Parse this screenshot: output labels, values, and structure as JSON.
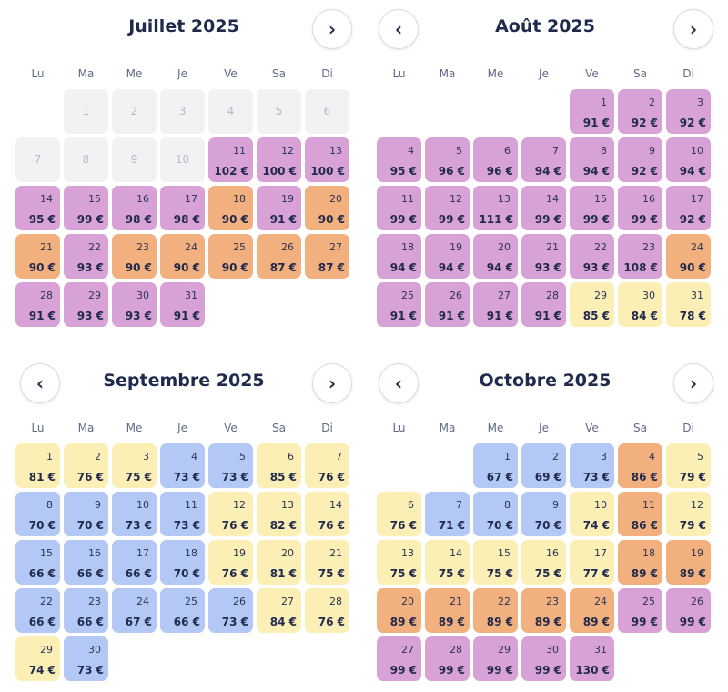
{
  "weekdays": [
    "Lu",
    "Ma",
    "Me",
    "Je",
    "Ve",
    "Sa",
    "Di"
  ],
  "nav": {
    "prev_glyph": "‹",
    "next_glyph": "›"
  },
  "colors": {
    "purple": "#d8a2d6",
    "orange": "#f3b07f",
    "yellow": "#fbefb6",
    "blue": "#b3c8f4",
    "gray": "#f1f2f4"
  },
  "months": [
    {
      "title": "Juillet 2025",
      "prev": false,
      "next": true,
      "offset": 1,
      "days": [
        {
          "d": "1",
          "p": "",
          "c": "gray"
        },
        {
          "d": "2",
          "p": "",
          "c": "gray"
        },
        {
          "d": "3",
          "p": "",
          "c": "gray"
        },
        {
          "d": "4",
          "p": "",
          "c": "gray"
        },
        {
          "d": "5",
          "p": "",
          "c": "gray"
        },
        {
          "d": "6",
          "p": "",
          "c": "gray"
        },
        {
          "d": "7",
          "p": "",
          "c": "gray"
        },
        {
          "d": "8",
          "p": "",
          "c": "gray"
        },
        {
          "d": "9",
          "p": "",
          "c": "gray"
        },
        {
          "d": "10",
          "p": "",
          "c": "gray"
        },
        {
          "d": "11",
          "p": "102 €",
          "c": "purple"
        },
        {
          "d": "12",
          "p": "100 €",
          "c": "purple"
        },
        {
          "d": "13",
          "p": "100 €",
          "c": "purple"
        },
        {
          "d": "14",
          "p": "95 €",
          "c": "purple"
        },
        {
          "d": "15",
          "p": "99 €",
          "c": "purple"
        },
        {
          "d": "16",
          "p": "98 €",
          "c": "purple"
        },
        {
          "d": "17",
          "p": "98 €",
          "c": "purple"
        },
        {
          "d": "18",
          "p": "90 €",
          "c": "orange"
        },
        {
          "d": "19",
          "p": "91 €",
          "c": "purple"
        },
        {
          "d": "20",
          "p": "90 €",
          "c": "orange"
        },
        {
          "d": "21",
          "p": "90 €",
          "c": "orange"
        },
        {
          "d": "22",
          "p": "93 €",
          "c": "purple"
        },
        {
          "d": "23",
          "p": "90 €",
          "c": "orange"
        },
        {
          "d": "24",
          "p": "90 €",
          "c": "orange"
        },
        {
          "d": "25",
          "p": "90 €",
          "c": "orange"
        },
        {
          "d": "26",
          "p": "87 €",
          "c": "orange"
        },
        {
          "d": "27",
          "p": "87 €",
          "c": "orange"
        },
        {
          "d": "28",
          "p": "91 €",
          "c": "purple"
        },
        {
          "d": "29",
          "p": "93 €",
          "c": "purple"
        },
        {
          "d": "30",
          "p": "93 €",
          "c": "purple"
        },
        {
          "d": "31",
          "p": "91 €",
          "c": "purple"
        }
      ]
    },
    {
      "title": "Août 2025",
      "prev": true,
      "next": true,
      "offset": 4,
      "days": [
        {
          "d": "1",
          "p": "91 €",
          "c": "purple"
        },
        {
          "d": "2",
          "p": "92 €",
          "c": "purple"
        },
        {
          "d": "3",
          "p": "92 €",
          "c": "purple"
        },
        {
          "d": "4",
          "p": "95 €",
          "c": "purple"
        },
        {
          "d": "5",
          "p": "96 €",
          "c": "purple"
        },
        {
          "d": "6",
          "p": "96 €",
          "c": "purple"
        },
        {
          "d": "7",
          "p": "94 €",
          "c": "purple"
        },
        {
          "d": "8",
          "p": "94 €",
          "c": "purple"
        },
        {
          "d": "9",
          "p": "92 €",
          "c": "purple"
        },
        {
          "d": "10",
          "p": "94 €",
          "c": "purple"
        },
        {
          "d": "11",
          "p": "99 €",
          "c": "purple"
        },
        {
          "d": "12",
          "p": "99 €",
          "c": "purple"
        },
        {
          "d": "13",
          "p": "111 €",
          "c": "purple"
        },
        {
          "d": "14",
          "p": "99 €",
          "c": "purple"
        },
        {
          "d": "15",
          "p": "99 €",
          "c": "purple"
        },
        {
          "d": "16",
          "p": "99 €",
          "c": "purple"
        },
        {
          "d": "17",
          "p": "92 €",
          "c": "purple"
        },
        {
          "d": "18",
          "p": "94 €",
          "c": "purple"
        },
        {
          "d": "19",
          "p": "94 €",
          "c": "purple"
        },
        {
          "d": "20",
          "p": "94 €",
          "c": "purple"
        },
        {
          "d": "21",
          "p": "93 €",
          "c": "purple"
        },
        {
          "d": "22",
          "p": "93 €",
          "c": "purple"
        },
        {
          "d": "23",
          "p": "108 €",
          "c": "purple"
        },
        {
          "d": "24",
          "p": "90 €",
          "c": "orange"
        },
        {
          "d": "25",
          "p": "91 €",
          "c": "purple"
        },
        {
          "d": "26",
          "p": "91 €",
          "c": "purple"
        },
        {
          "d": "27",
          "p": "91 €",
          "c": "purple"
        },
        {
          "d": "28",
          "p": "91 €",
          "c": "purple"
        },
        {
          "d": "29",
          "p": "85 €",
          "c": "yellow"
        },
        {
          "d": "30",
          "p": "84 €",
          "c": "yellow"
        },
        {
          "d": "31",
          "p": "78 €",
          "c": "yellow"
        }
      ]
    },
    {
      "title": "Septembre 2025",
      "prev": true,
      "next": true,
      "offset": 0,
      "days": [
        {
          "d": "1",
          "p": "81 €",
          "c": "yellow"
        },
        {
          "d": "2",
          "p": "76 €",
          "c": "yellow"
        },
        {
          "d": "3",
          "p": "75 €",
          "c": "yellow"
        },
        {
          "d": "4",
          "p": "73 €",
          "c": "blue"
        },
        {
          "d": "5",
          "p": "73 €",
          "c": "blue"
        },
        {
          "d": "6",
          "p": "85 €",
          "c": "yellow"
        },
        {
          "d": "7",
          "p": "76 €",
          "c": "yellow"
        },
        {
          "d": "8",
          "p": "70 €",
          "c": "blue"
        },
        {
          "d": "9",
          "p": "70 €",
          "c": "blue"
        },
        {
          "d": "10",
          "p": "73 €",
          "c": "blue"
        },
        {
          "d": "11",
          "p": "73 €",
          "c": "blue"
        },
        {
          "d": "12",
          "p": "76 €",
          "c": "yellow"
        },
        {
          "d": "13",
          "p": "82 €",
          "c": "yellow"
        },
        {
          "d": "14",
          "p": "76 €",
          "c": "yellow"
        },
        {
          "d": "15",
          "p": "66 €",
          "c": "blue"
        },
        {
          "d": "16",
          "p": "66 €",
          "c": "blue"
        },
        {
          "d": "17",
          "p": "66 €",
          "c": "blue"
        },
        {
          "d": "18",
          "p": "70 €",
          "c": "blue"
        },
        {
          "d": "19",
          "p": "76 €",
          "c": "yellow"
        },
        {
          "d": "20",
          "p": "81 €",
          "c": "yellow"
        },
        {
          "d": "21",
          "p": "75 €",
          "c": "yellow"
        },
        {
          "d": "22",
          "p": "66 €",
          "c": "blue"
        },
        {
          "d": "23",
          "p": "66 €",
          "c": "blue"
        },
        {
          "d": "24",
          "p": "67 €",
          "c": "blue"
        },
        {
          "d": "25",
          "p": "66 €",
          "c": "blue"
        },
        {
          "d": "26",
          "p": "73 €",
          "c": "blue"
        },
        {
          "d": "27",
          "p": "84 €",
          "c": "yellow"
        },
        {
          "d": "28",
          "p": "76 €",
          "c": "yellow"
        },
        {
          "d": "29",
          "p": "74 €",
          "c": "yellow"
        },
        {
          "d": "30",
          "p": "73 €",
          "c": "blue"
        }
      ]
    },
    {
      "title": "Octobre 2025",
      "prev": true,
      "next": true,
      "offset": 2,
      "days": [
        {
          "d": "1",
          "p": "67 €",
          "c": "blue"
        },
        {
          "d": "2",
          "p": "69 €",
          "c": "blue"
        },
        {
          "d": "3",
          "p": "73 €",
          "c": "blue"
        },
        {
          "d": "4",
          "p": "86 €",
          "c": "orange"
        },
        {
          "d": "5",
          "p": "79 €",
          "c": "yellow"
        },
        {
          "d": "6",
          "p": "76 €",
          "c": "yellow"
        },
        {
          "d": "7",
          "p": "71 €",
          "c": "blue"
        },
        {
          "d": "8",
          "p": "70 €",
          "c": "blue"
        },
        {
          "d": "9",
          "p": "70 €",
          "c": "blue"
        },
        {
          "d": "10",
          "p": "74 €",
          "c": "yellow"
        },
        {
          "d": "11",
          "p": "86 €",
          "c": "orange"
        },
        {
          "d": "12",
          "p": "79 €",
          "c": "yellow"
        },
        {
          "d": "13",
          "p": "75 €",
          "c": "yellow"
        },
        {
          "d": "14",
          "p": "75 €",
          "c": "yellow"
        },
        {
          "d": "15",
          "p": "75 €",
          "c": "yellow"
        },
        {
          "d": "16",
          "p": "75 €",
          "c": "yellow"
        },
        {
          "d": "17",
          "p": "77 €",
          "c": "yellow"
        },
        {
          "d": "18",
          "p": "89 €",
          "c": "orange"
        },
        {
          "d": "19",
          "p": "89 €",
          "c": "orange"
        },
        {
          "d": "20",
          "p": "89 €",
          "c": "orange"
        },
        {
          "d": "21",
          "p": "89 €",
          "c": "orange"
        },
        {
          "d": "22",
          "p": "89 €",
          "c": "orange"
        },
        {
          "d": "23",
          "p": "89 €",
          "c": "orange"
        },
        {
          "d": "24",
          "p": "89 €",
          "c": "orange"
        },
        {
          "d": "25",
          "p": "99 €",
          "c": "purple"
        },
        {
          "d": "26",
          "p": "99 €",
          "c": "purple"
        },
        {
          "d": "27",
          "p": "99 €",
          "c": "purple"
        },
        {
          "d": "28",
          "p": "99 €",
          "c": "purple"
        },
        {
          "d": "29",
          "p": "99 €",
          "c": "purple"
        },
        {
          "d": "30",
          "p": "99 €",
          "c": "purple"
        },
        {
          "d": "31",
          "p": "130 €",
          "c": "purple"
        }
      ]
    }
  ]
}
